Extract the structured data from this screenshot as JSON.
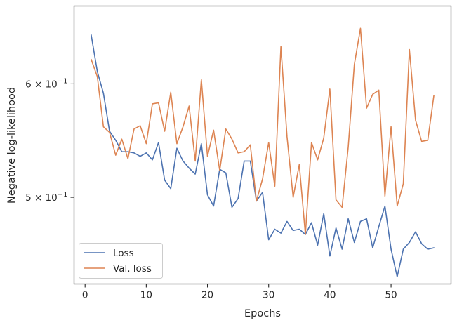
{
  "chart_data": {
    "type": "line",
    "xlabel": "Epochs",
    "ylabel": "Negative log-likelihood",
    "y_scale": "log",
    "xlim": [
      -1.8,
      59.8
    ],
    "ylim": [
      0.435,
      0.68
    ],
    "x_ticks": [
      0,
      10,
      20,
      30,
      40,
      50
    ],
    "x_tick_labels": [
      "0",
      "10",
      "20",
      "30",
      "40",
      "50"
    ],
    "y_ticks": [
      0.5,
      0.6
    ],
    "y_tick_labels": [
      {
        "base": "5 × 10",
        "exp": "−1"
      },
      {
        "base": "6 × 10",
        "exp": "−1"
      }
    ],
    "grid": false,
    "legend_position": "lower-left",
    "series": [
      {
        "name": "Loss",
        "color": "#4c72b0",
        "x": [
          1,
          2,
          3,
          4,
          5,
          6,
          7,
          8,
          9,
          10,
          11,
          12,
          13,
          14,
          15,
          16,
          17,
          18,
          19,
          20,
          21,
          22,
          23,
          24,
          25,
          26,
          27,
          28,
          29,
          30,
          31,
          32,
          33,
          34,
          35,
          36,
          37,
          38,
          39,
          40,
          41,
          42,
          43,
          44,
          45,
          46,
          47,
          48,
          49,
          50,
          51,
          52,
          53,
          54,
          55,
          56,
          57
        ],
        "values": [
          0.649,
          0.612,
          0.591,
          0.556,
          0.548,
          0.538,
          0.538,
          0.537,
          0.534,
          0.537,
          0.531,
          0.546,
          0.514,
          0.507,
          0.541,
          0.53,
          0.524,
          0.519,
          0.545,
          0.502,
          0.493,
          0.523,
          0.52,
          0.492,
          0.499,
          0.53,
          0.53,
          0.497,
          0.504,
          0.467,
          0.475,
          0.472,
          0.481,
          0.474,
          0.475,
          0.471,
          0.48,
          0.463,
          0.487,
          0.455,
          0.476,
          0.46,
          0.483,
          0.465,
          0.481,
          0.483,
          0.461,
          0.477,
          0.493,
          0.46,
          0.44,
          0.46,
          0.465,
          0.473,
          0.464,
          0.46,
          0.461
        ]
      },
      {
        "name": "Val. loss",
        "color": "#dd8452",
        "x": [
          1,
          2,
          3,
          4,
          5,
          6,
          7,
          8,
          9,
          10,
          11,
          12,
          13,
          14,
          15,
          16,
          17,
          18,
          19,
          20,
          21,
          22,
          23,
          24,
          25,
          26,
          27,
          28,
          29,
          30,
          31,
          32,
          33,
          34,
          35,
          36,
          37,
          38,
          39,
          40,
          41,
          42,
          43,
          44,
          45,
          46,
          47,
          48,
          49,
          50,
          51,
          52,
          53,
          54,
          55,
          56,
          57
        ],
        "values": [
          0.624,
          0.607,
          0.56,
          0.555,
          0.535,
          0.549,
          0.532,
          0.558,
          0.561,
          0.545,
          0.581,
          0.582,
          0.556,
          0.592,
          0.545,
          0.56,
          0.579,
          0.53,
          0.604,
          0.534,
          0.557,
          0.522,
          0.558,
          0.549,
          0.537,
          0.538,
          0.544,
          0.497,
          0.515,
          0.546,
          0.509,
          0.637,
          0.551,
          0.5,
          0.527,
          0.471,
          0.546,
          0.531,
          0.55,
          0.595,
          0.498,
          0.492,
          0.542,
          0.619,
          0.656,
          0.577,
          0.59,
          0.594,
          0.501,
          0.56,
          0.493,
          0.511,
          0.634,
          0.566,
          0.547,
          0.548,
          0.589
        ]
      }
    ]
  }
}
